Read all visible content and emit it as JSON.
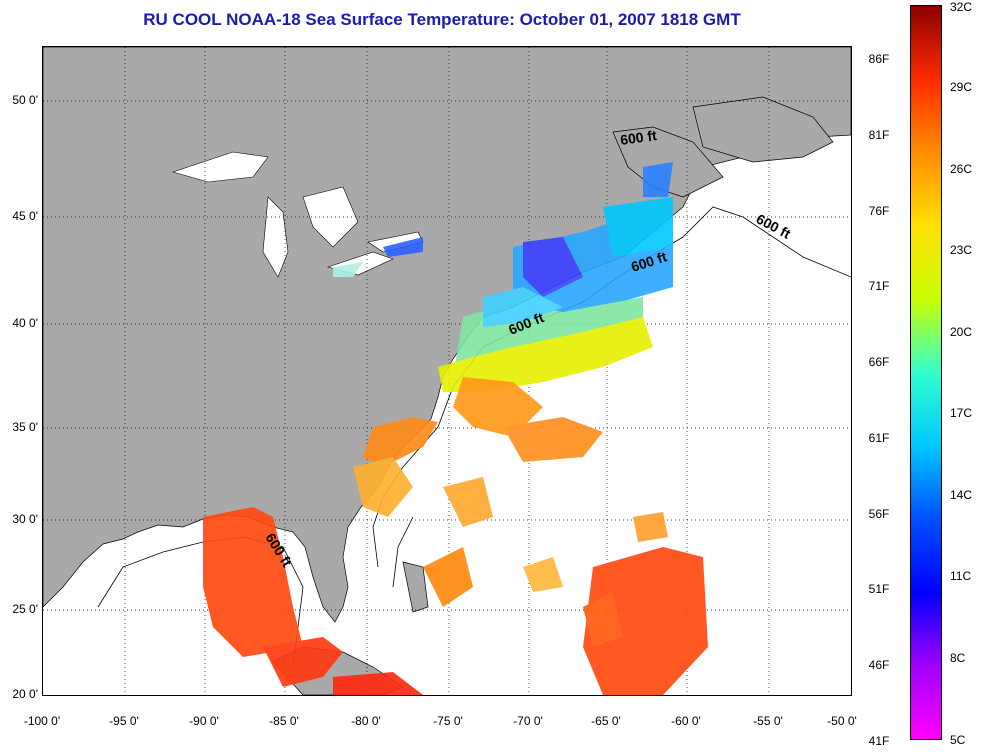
{
  "title": "RU COOL  NOAA-18  Sea Surface Temperature:  October 01, 2007 1818 GMT",
  "map": {
    "lon_range": [
      -100,
      -50
    ],
    "lat_range": [
      20,
      52.5
    ],
    "lon_ticks": [
      "-100 0'",
      "-95 0'",
      "-90 0'",
      "-85 0'",
      "-80 0'",
      "-75 0'",
      "-70 0'",
      "-65 0'",
      "-60 0'",
      "-55 0'",
      "-50 0'"
    ],
    "lat_ticks": [
      "50 0'",
      "45 0'",
      "40 0'",
      "35 0'",
      "30 0'",
      "25 0'",
      "20 0'"
    ],
    "grid": "dotted",
    "contour_labels": [
      "600 ft",
      "600 ft",
      "600 ft",
      "600 ft",
      "600 ft"
    ],
    "land_color": "#a9a9a9",
    "no_data_color": "#ffffff"
  },
  "colorbar": {
    "fahrenheit_labels": [
      "86F",
      "81F",
      "76F",
      "71F",
      "66F",
      "61F",
      "56F",
      "51F",
      "46F",
      "41F"
    ],
    "celsius_labels": [
      "32C",
      "29C",
      "26C",
      "23C",
      "20C",
      "17C",
      "14C",
      "11C",
      "8C",
      "5C"
    ],
    "colors": [
      "#8b0000",
      "#ff2a00",
      "#ff8c00",
      "#ffe000",
      "#c8ff00",
      "#33ffcc",
      "#00c8ff",
      "#0050ff",
      "#0000ff",
      "#a000ff",
      "#ff00ff"
    ]
  }
}
